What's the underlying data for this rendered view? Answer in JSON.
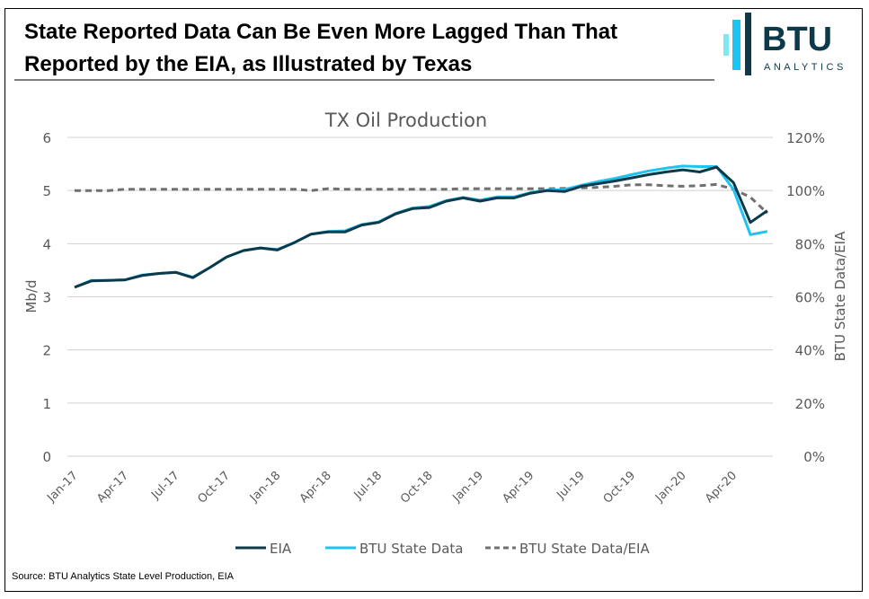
{
  "header": {
    "title_line1": "State Reported Data Can Be Even More Lagged Than That",
    "title_line2": "Reported by the EIA, as Illustrated by Texas",
    "logo_text": "BTU",
    "logo_subtext": "ANALYTICS"
  },
  "source": "Source: BTU Analytics State Level Production, EIA",
  "colors": {
    "eia": "#0d3a4a",
    "btu": "#1ec3f2",
    "ratio": "#707070",
    "grid": "#d0d0d0"
  },
  "chart_data": {
    "type": "line",
    "title": "TX Oil Production",
    "ylabel": "Mb/d",
    "y2label": "BTU State Data/EIA",
    "ylim": [
      0,
      6
    ],
    "y2lim": [
      0,
      120
    ],
    "yticks": [
      "0",
      "1",
      "2",
      "3",
      "4",
      "5",
      "6"
    ],
    "y2ticks": [
      "0%",
      "20%",
      "40%",
      "60%",
      "80%",
      "100%",
      "120%"
    ],
    "xtick_labels": [
      "Jan-17",
      "Apr-17",
      "Jul-17",
      "Oct-17",
      "Jan-18",
      "Apr-18",
      "Jul-18",
      "Oct-18",
      "Jan-19",
      "Apr-19",
      "Jul-19",
      "Oct-19",
      "Jan-20",
      "Apr-20"
    ],
    "grid": true,
    "legend_position": "bottom",
    "x": [
      "Jan-17",
      "Feb-17",
      "Mar-17",
      "Apr-17",
      "May-17",
      "Jun-17",
      "Jul-17",
      "Aug-17",
      "Sep-17",
      "Oct-17",
      "Nov-17",
      "Dec-17",
      "Jan-18",
      "Feb-18",
      "Mar-18",
      "Apr-18",
      "May-18",
      "Jun-18",
      "Jul-18",
      "Aug-18",
      "Sep-18",
      "Oct-18",
      "Nov-18",
      "Dec-18",
      "Jan-19",
      "Feb-19",
      "Mar-19",
      "Apr-19",
      "May-19",
      "Jun-19",
      "Jul-19",
      "Aug-19",
      "Sep-19",
      "Oct-19",
      "Nov-19",
      "Dec-19",
      "Jan-20",
      "Feb-20",
      "Mar-20",
      "Apr-20",
      "May-20",
      "Jun-20"
    ],
    "series": [
      {
        "name": "EIA",
        "axis": "left",
        "style": "solid",
        "values": [
          3.18,
          3.3,
          3.31,
          3.32,
          3.4,
          3.44,
          3.46,
          3.36,
          3.55,
          3.75,
          3.87,
          3.92,
          3.88,
          4.02,
          4.18,
          4.22,
          4.22,
          4.35,
          4.4,
          4.56,
          4.66,
          4.68,
          4.8,
          4.86,
          4.8,
          4.86,
          4.86,
          4.95,
          5.0,
          4.98,
          5.08,
          5.13,
          5.18,
          5.24,
          5.3,
          5.35,
          5.39,
          5.35,
          5.44,
          5.15,
          4.4,
          4.62
        ]
      },
      {
        "name": "BTU State Data",
        "axis": "left",
        "style": "solid",
        "values": [
          3.18,
          3.31,
          3.31,
          3.32,
          3.41,
          3.44,
          3.46,
          3.37,
          3.55,
          3.75,
          3.87,
          3.92,
          3.89,
          4.02,
          4.18,
          4.23,
          4.24,
          4.36,
          4.41,
          4.57,
          4.67,
          4.7,
          4.81,
          4.87,
          4.82,
          4.88,
          4.88,
          4.96,
          5.01,
          5.02,
          5.1,
          5.17,
          5.23,
          5.3,
          5.37,
          5.42,
          5.46,
          5.45,
          5.45,
          5.02,
          4.17,
          4.23
        ]
      },
      {
        "name": "BTU State Data/EIA",
        "axis": "right",
        "style": "dashed",
        "values": [
          100,
          100,
          100,
          100.5,
          100.5,
          100.5,
          100.5,
          100.5,
          100.5,
          100.5,
          100.5,
          100.5,
          100.5,
          100.5,
          100,
          100.7,
          100.5,
          100.5,
          100.5,
          100.5,
          100.5,
          100.5,
          100.5,
          100.7,
          100.7,
          100.7,
          100.7,
          100.7,
          100.7,
          100.8,
          101,
          101.2,
          101.6,
          102.2,
          102.2,
          101.8,
          101.6,
          101.8,
          102.3,
          100.5,
          97.5,
          91.5
        ]
      }
    ]
  }
}
